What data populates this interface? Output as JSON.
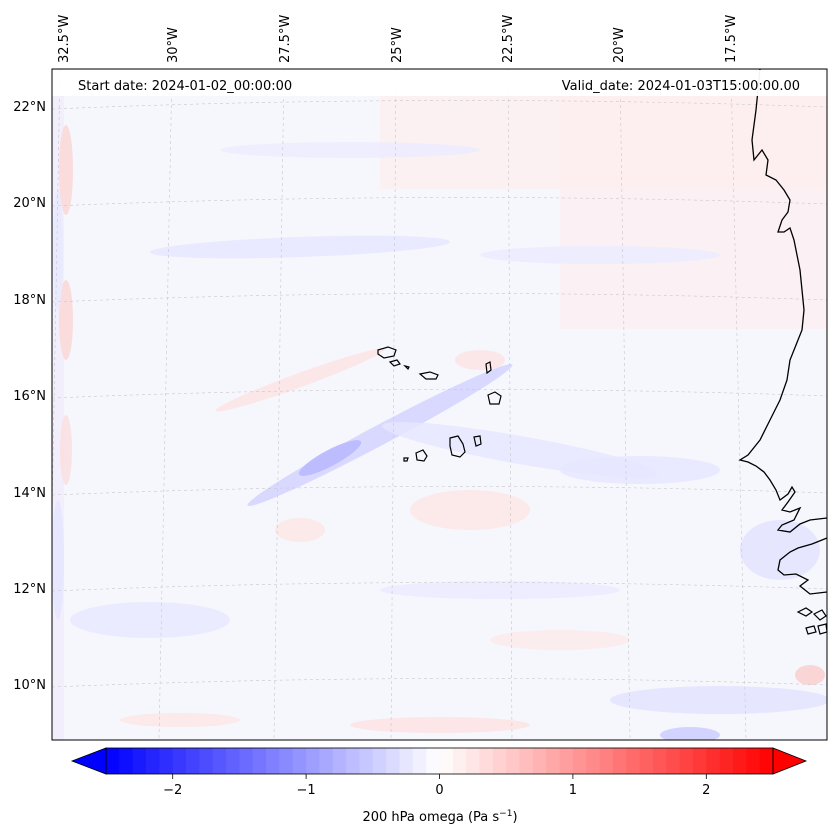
{
  "header": {
    "start_date": "Start date: 2024-01-02_00:00:00",
    "valid_date": "Valid_date: 2024-01-03T15:00:00.00"
  },
  "map": {
    "lon_labels": [
      "32.5°W",
      "30°W",
      "27.5°W",
      "25°W",
      "22.5°W",
      "20°W",
      "17.5°W"
    ],
    "lat_labels": [
      "22°N",
      "20°N",
      "18°N",
      "16°N",
      "14°N",
      "12°N",
      "10°N"
    ],
    "gridlines": "dashed",
    "features": [
      "coastline-west-africa",
      "cape-verde-islands"
    ]
  },
  "colorbar": {
    "label": "200 hPa omega (Pa s",
    "label_unit_sup": "−1",
    "label_close": ")",
    "ticks": [
      "−2",
      "−1",
      "0",
      "1",
      "2"
    ],
    "tick_values": [
      -2,
      -1,
      0,
      1,
      2
    ],
    "range": [
      -2.5,
      2.5
    ],
    "colormap": "bwr",
    "color_low": "#0000ff",
    "color_mid": "#ffffff",
    "color_high": "#ff0000",
    "extend": "both"
  }
}
